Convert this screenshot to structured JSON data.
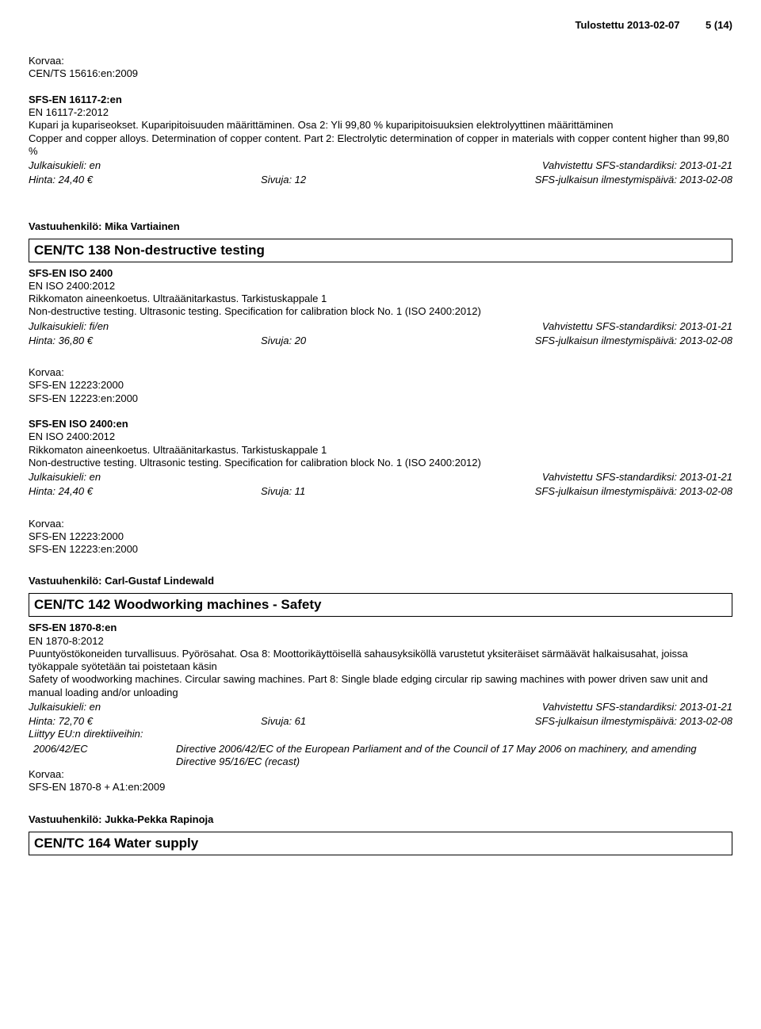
{
  "header": {
    "printed": "Tulostettu 2013-02-07",
    "page": "5 (14)"
  },
  "entry1": {
    "korvaa_label": "Korvaa:",
    "korvaa_item": "CEN/TS 15616:en:2009",
    "code_bold": "SFS-EN 16117-2:en",
    "code2": "EN 16117-2:2012",
    "fi1": "Kupari ja kupariseokset. Kuparipitoisuuden määrittäminen. Osa 2: Yli 99,80 % kuparipitoisuuksien elektrolyyttinen määrittäminen",
    "en1": "Copper and copper alloys. Determination of copper content. Part 2: Electrolytic determination of copper in materials with copper content higher than 99,80 %",
    "julkaisu": "Julkaisukieli: en",
    "vahv": "Vahvistettu SFS-standardiksi: 2013-01-21",
    "hinta": "Hinta: 24,40 €",
    "sivuja": "Sivuja: 12",
    "ilm": "SFS-julkaisun ilmestymispäivä: 2013-02-08"
  },
  "vh1": "Vastuuhenkilö: Mika Vartiainen",
  "section1": "CEN/TC 138 Non-destructive testing",
  "entry2": {
    "code_bold": "SFS-EN ISO 2400",
    "code2": "EN ISO 2400:2012",
    "fi1": "Rikkomaton aineenkoetus. Ultraäänitarkastus. Tarkistuskappale 1",
    "en1": "Non-destructive testing. Ultrasonic testing. Specification for calibration block No. 1 (ISO 2400:2012)",
    "julkaisu": "Julkaisukieli: fi/en",
    "vahv": "Vahvistettu SFS-standardiksi: 2013-01-21",
    "hinta": "Hinta: 36,80 €",
    "sivuja": "Sivuja: 20",
    "ilm": "SFS-julkaisun ilmestymispäivä: 2013-02-08"
  },
  "entry3": {
    "korvaa_label": "Korvaa:",
    "korvaa_1": "SFS-EN 12223:2000",
    "korvaa_2": "SFS-EN 12223:en:2000",
    "code_bold": "SFS-EN ISO 2400:en",
    "code2": "EN ISO 2400:2012",
    "fi1": "Rikkomaton aineenkoetus. Ultraäänitarkastus. Tarkistuskappale 1",
    "en1": "Non-destructive testing. Ultrasonic testing. Specification for calibration block No. 1 (ISO 2400:2012)",
    "julkaisu": "Julkaisukieli: en",
    "vahv": "Vahvistettu SFS-standardiksi: 2013-01-21",
    "hinta": "Hinta: 24,40 €",
    "sivuja": "Sivuja: 11",
    "ilm": "SFS-julkaisun ilmestymispäivä: 2013-02-08"
  },
  "entry4": {
    "korvaa_label": "Korvaa:",
    "korvaa_1": "SFS-EN 12223:2000",
    "korvaa_2": "SFS-EN 12223:en:2000"
  },
  "vh2": "Vastuuhenkilö: Carl-Gustaf Lindewald",
  "section2": "CEN/TC 142 Woodworking machines - Safety",
  "entry5": {
    "code_bold": "SFS-EN 1870-8:en",
    "code2": "EN 1870-8:2012",
    "fi1": "Puuntyöstökoneiden turvallisuus. Pyörösahat. Osa 8: Moottorikäyttöisellä sahausyksiköllä varustetut yksiteräiset särmäävät halkaisusahat, joissa työkappale syötetään tai poistetaan käsin",
    "en1": "Safety of woodworking machines. Circular sawing machines. Part 8: Single blade edging circular rip sawing machines with power driven saw unit and manual loading and/or unloading",
    "julkaisu": "Julkaisukieli: en",
    "vahv": "Vahvistettu SFS-standardiksi: 2013-01-21",
    "hinta": "Hinta: 72,70 €",
    "sivuja": "Sivuja: 61",
    "ilm": "SFS-julkaisun ilmestymispäivä: 2013-02-08",
    "liittyy": "Liittyy EU:n direktiiveihin:",
    "dir_code": "2006/42/EC",
    "dir_text": "Directive 2006/42/EC of the European Parliament and of the Council of 17 May 2006 on machinery, and amending Directive 95/16/EC (recast)",
    "korvaa_label": "Korvaa:",
    "korvaa_1": "SFS-EN 1870-8 + A1:en:2009"
  },
  "vh3": "Vastuuhenkilö: Jukka-Pekka Rapinoja",
  "section3": "CEN/TC 164 Water supply"
}
